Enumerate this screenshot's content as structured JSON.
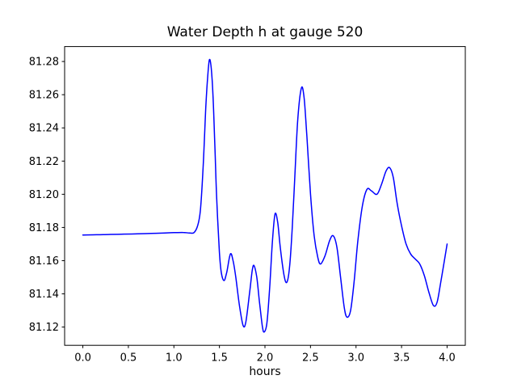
{
  "chart_data": {
    "type": "line",
    "title": "Water Depth h at gauge 520",
    "xlabel": "hours",
    "ylabel": "",
    "grid": false,
    "legend": false,
    "line_color": "#0000ff",
    "axis_color": "#000000",
    "background_color": "#ffffff",
    "xlim": [
      -0.2,
      4.2
    ],
    "ylim": [
      81.109,
      81.289
    ],
    "xticks": {
      "values": [
        0.0,
        0.5,
        1.0,
        1.5,
        2.0,
        2.5,
        3.0,
        3.5,
        4.0
      ],
      "labels": [
        "0.0",
        "0.5",
        "1.0",
        "1.5",
        "2.0",
        "2.5",
        "3.0",
        "3.5",
        "4.0"
      ]
    },
    "yticks": {
      "values": [
        81.12,
        81.14,
        81.16,
        81.18,
        81.2,
        81.22,
        81.24,
        81.26,
        81.28
      ],
      "labels": [
        "81.12",
        "81.14",
        "81.16",
        "81.18",
        "81.20",
        "81.22",
        "81.24",
        "81.26",
        "81.28"
      ]
    },
    "points": [
      [
        0.0,
        81.1755
      ],
      [
        0.15,
        81.1756
      ],
      [
        0.3,
        81.1758
      ],
      [
        0.45,
        81.176
      ],
      [
        0.6,
        81.1762
      ],
      [
        0.75,
        81.1764
      ],
      [
        0.9,
        81.1767
      ],
      [
        1.0,
        81.1769
      ],
      [
        1.1,
        81.177
      ],
      [
        1.17,
        81.1767
      ],
      [
        1.22,
        81.1769
      ],
      [
        1.26,
        81.181
      ],
      [
        1.29,
        81.19
      ],
      [
        1.32,
        81.215
      ],
      [
        1.35,
        81.252
      ],
      [
        1.37,
        81.27
      ],
      [
        1.39,
        81.281
      ],
      [
        1.41,
        81.276
      ],
      [
        1.43,
        81.259
      ],
      [
        1.45,
        81.229
      ],
      [
        1.47,
        81.197
      ],
      [
        1.5,
        81.165
      ],
      [
        1.52,
        81.153
      ],
      [
        1.55,
        81.148
      ],
      [
        1.58,
        81.153
      ],
      [
        1.62,
        81.164
      ],
      [
        1.65,
        81.16
      ],
      [
        1.68,
        81.15
      ],
      [
        1.72,
        81.133
      ],
      [
        1.76,
        81.121
      ],
      [
        1.79,
        81.123
      ],
      [
        1.83,
        81.14
      ],
      [
        1.86,
        81.154
      ],
      [
        1.88,
        81.157
      ],
      [
        1.91,
        81.15
      ],
      [
        1.94,
        81.135
      ],
      [
        1.97,
        81.121
      ],
      [
        1.99,
        81.117
      ],
      [
        2.02,
        81.122
      ],
      [
        2.05,
        81.142
      ],
      [
        2.08,
        81.17
      ],
      [
        2.11,
        81.188
      ],
      [
        2.14,
        81.183
      ],
      [
        2.17,
        81.167
      ],
      [
        2.21,
        81.151
      ],
      [
        2.24,
        81.147
      ],
      [
        2.27,
        81.156
      ],
      [
        2.3,
        81.18
      ],
      [
        2.33,
        81.213
      ],
      [
        2.36,
        81.245
      ],
      [
        2.4,
        81.264
      ],
      [
        2.43,
        81.258
      ],
      [
        2.46,
        81.235
      ],
      [
        2.5,
        81.2
      ],
      [
        2.54,
        81.175
      ],
      [
        2.58,
        81.162
      ],
      [
        2.61,
        81.158
      ],
      [
        2.66,
        81.163
      ],
      [
        2.71,
        81.172
      ],
      [
        2.75,
        81.175
      ],
      [
        2.79,
        81.168
      ],
      [
        2.83,
        81.15
      ],
      [
        2.87,
        81.132
      ],
      [
        2.9,
        81.126
      ],
      [
        2.94,
        81.13
      ],
      [
        2.98,
        81.148
      ],
      [
        3.02,
        81.172
      ],
      [
        3.07,
        81.193
      ],
      [
        3.12,
        81.203
      ],
      [
        3.17,
        81.202
      ],
      [
        3.23,
        81.2
      ],
      [
        3.28,
        81.206
      ],
      [
        3.33,
        81.214
      ],
      [
        3.37,
        81.216
      ],
      [
        3.41,
        81.21
      ],
      [
        3.45,
        81.195
      ],
      [
        3.5,
        81.181
      ],
      [
        3.55,
        81.17
      ],
      [
        3.6,
        81.164
      ],
      [
        3.65,
        81.161
      ],
      [
        3.7,
        81.158
      ],
      [
        3.75,
        81.151
      ],
      [
        3.8,
        81.141
      ],
      [
        3.85,
        81.133
      ],
      [
        3.89,
        81.135
      ],
      [
        3.93,
        81.147
      ],
      [
        3.97,
        81.16
      ],
      [
        4.0,
        81.17
      ]
    ]
  }
}
